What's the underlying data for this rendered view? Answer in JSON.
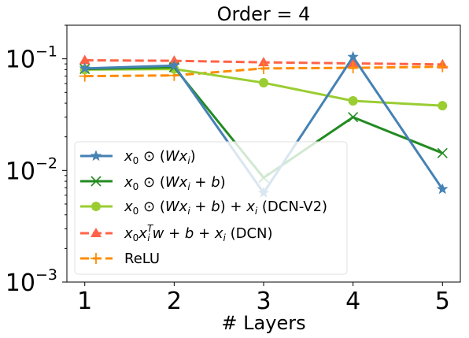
{
  "chart_data": {
    "type": "line",
    "title": "Order = 4",
    "xlabel": "# Layers",
    "ylabel": "",
    "x": [
      1,
      2,
      3,
      4,
      5
    ],
    "xlim": [
      0.8,
      5.2
    ],
    "ylim": [
      0.001,
      0.2
    ],
    "yscale": "log",
    "x_ticks": [
      {
        "value": 1,
        "label": "1"
      },
      {
        "value": 2,
        "label": "2"
      },
      {
        "value": 3,
        "label": "3"
      },
      {
        "value": 4,
        "label": "4"
      },
      {
        "value": 5,
        "label": "5"
      }
    ],
    "y_ticks": [
      {
        "value": 0.001,
        "base": "10",
        "exp": "−3"
      },
      {
        "value": 0.01,
        "base": "10",
        "exp": "−2"
      },
      {
        "value": 0.1,
        "base": "10",
        "exp": "−1"
      }
    ],
    "grid": false,
    "legend_position": "lower-left",
    "series": [
      {
        "name": "x0 ⊙ (Wxi)",
        "values": [
          0.082,
          0.087,
          0.0063,
          0.104,
          0.0068
        ],
        "color": "#4682b4",
        "marker": "star",
        "dash": "solid"
      },
      {
        "name": "x0 ⊙ (Wxi + b)",
        "values": [
          0.081,
          0.084,
          0.0086,
          0.03,
          0.0143
        ],
        "color": "#228b22",
        "marker": "x",
        "dash": "solid"
      },
      {
        "name": "x0 ⊙ (Wxi + b) + xi (DCN-V2)",
        "values": [
          0.08,
          0.081,
          0.061,
          0.042,
          0.038
        ],
        "color": "#9acd32",
        "marker": "circle",
        "dash": "solid"
      },
      {
        "name": "x0 xiT w + b + xi (DCN)",
        "values": [
          0.097,
          0.096,
          0.093,
          0.091,
          0.089
        ],
        "color": "#ff6347",
        "marker": "triangle",
        "dash": "dashed"
      },
      {
        "name": "ReLU",
        "values": [
          0.07,
          0.071,
          0.082,
          0.083,
          0.085
        ],
        "color": "#ff8c00",
        "marker": "plus",
        "dash": "dashed"
      }
    ]
  }
}
